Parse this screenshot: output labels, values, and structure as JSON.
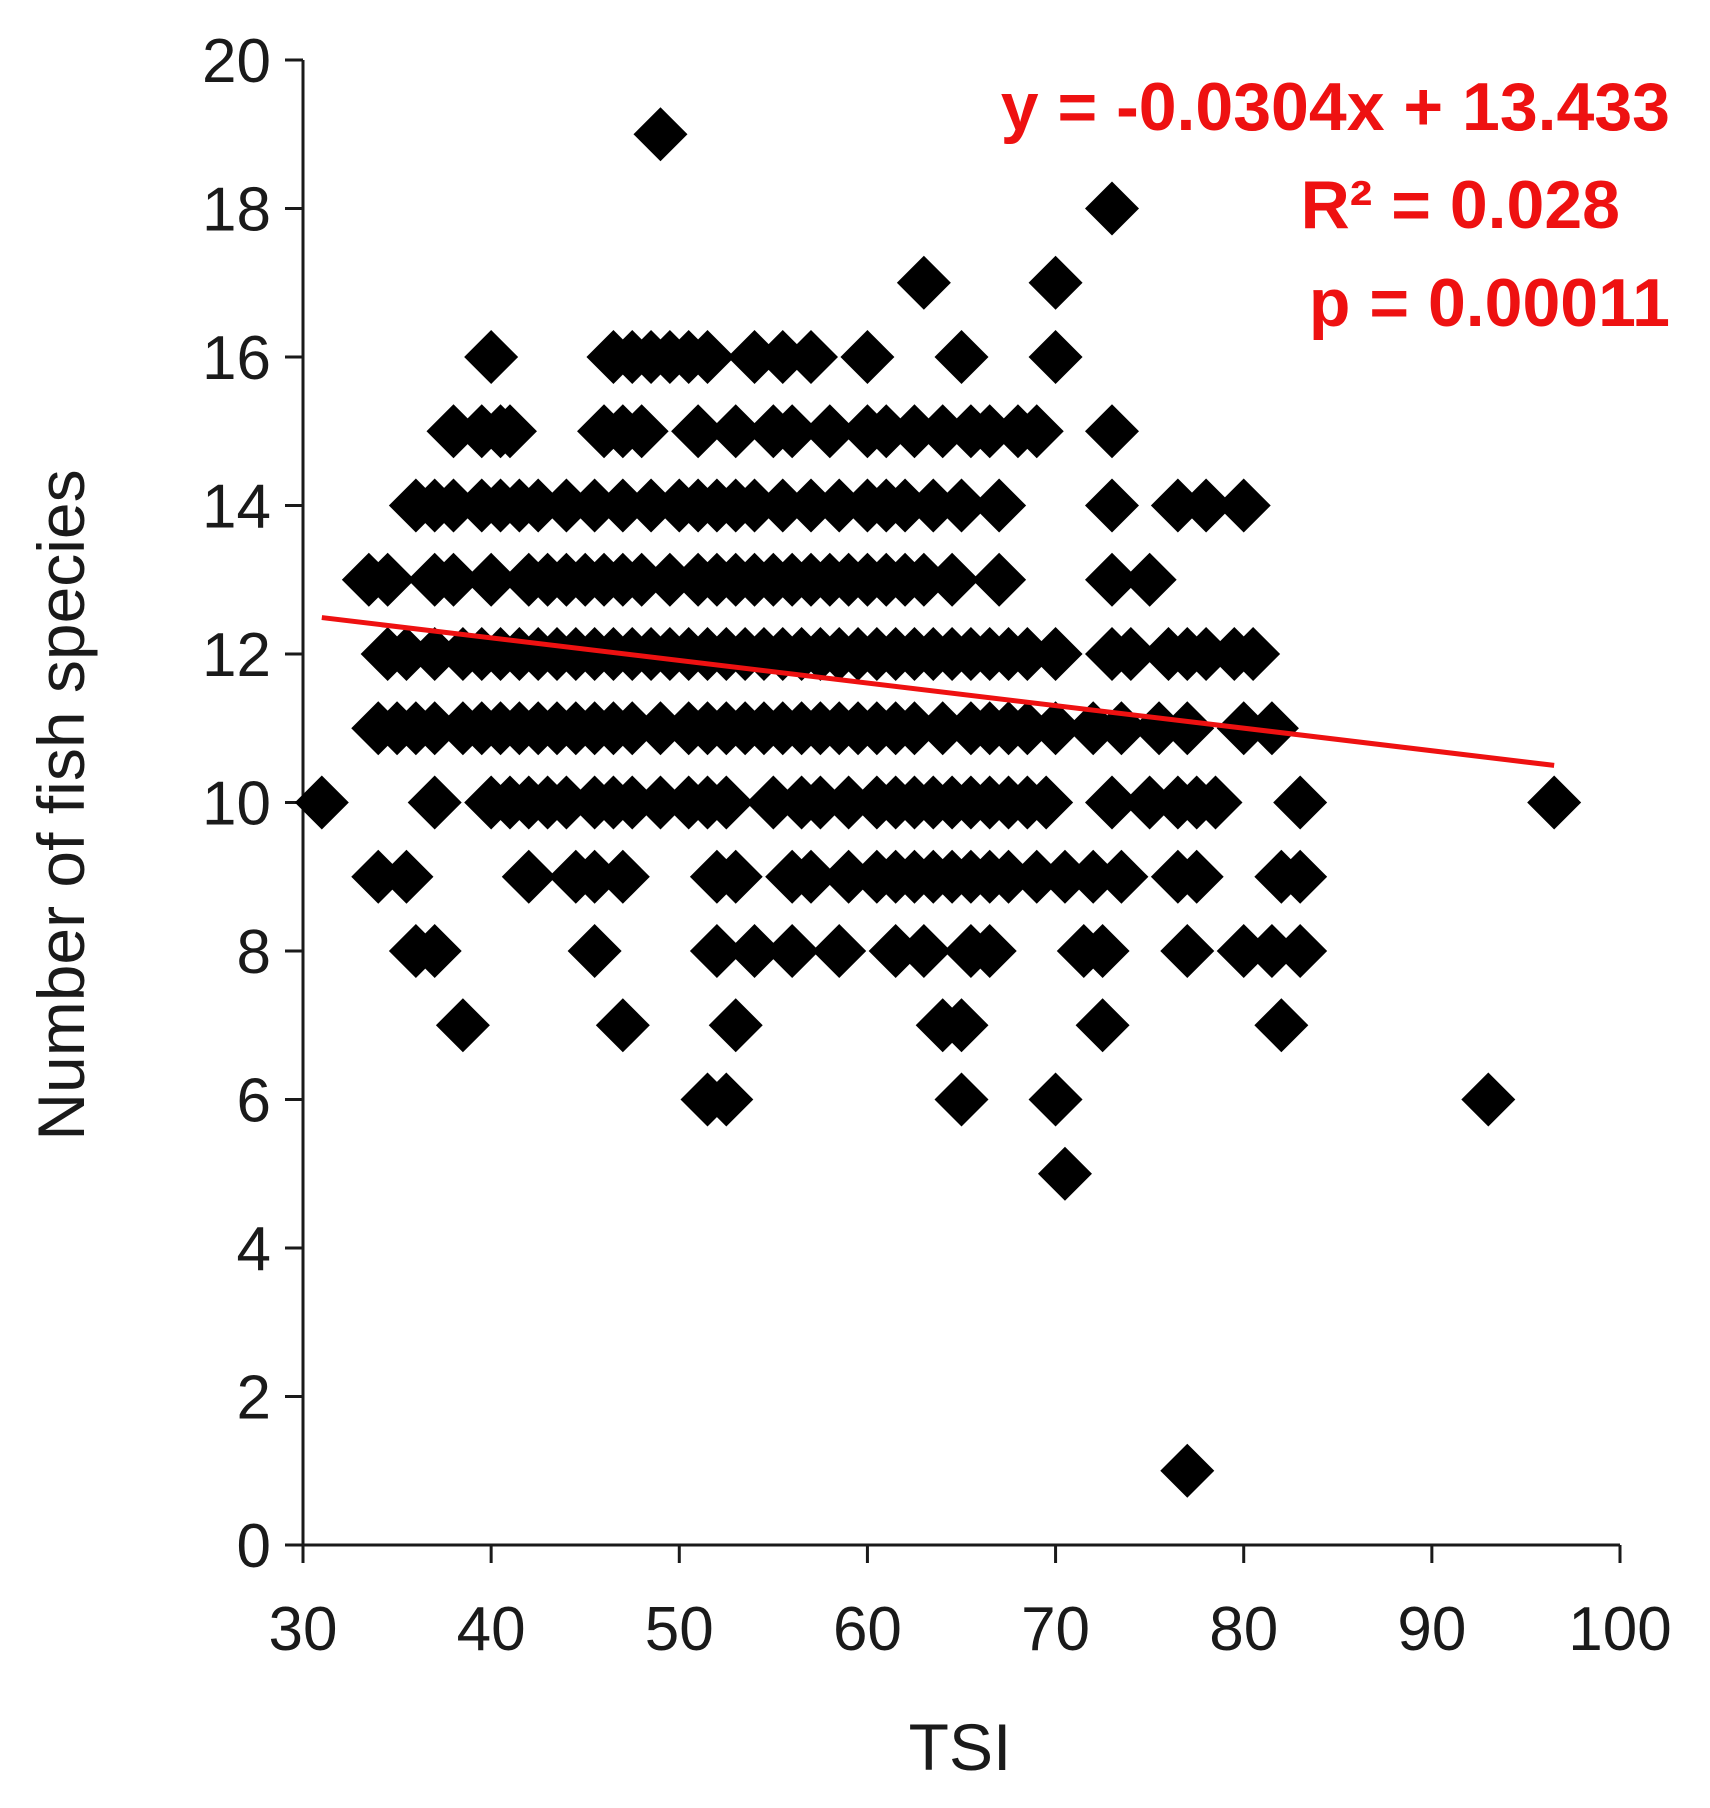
{
  "chart_data": {
    "type": "scatter",
    "xlabel": "TSI",
    "ylabel": "Number of fish species",
    "xlim": [
      30,
      100
    ],
    "ylim": [
      0,
      20
    ],
    "xticks": [
      "30",
      "40",
      "50",
      "60",
      "70",
      "80",
      "90",
      "100"
    ],
    "yticks": [
      "0",
      "2",
      "4",
      "6",
      "8",
      "10",
      "12",
      "14",
      "16",
      "18",
      "20"
    ],
    "marker": "diamond",
    "marker_color": "#000000",
    "trendline": {
      "slope": -0.0304,
      "intercept": 13.433,
      "x_range": [
        31,
        96.5
      ],
      "color": "#ee1111"
    },
    "annotations": [
      "y = -0.0304x + 13.433",
      "R² = 0.028",
      "p = 0.00011"
    ],
    "annotation_color": "#ee1111",
    "grid": false,
    "series": [
      {
        "points": [
          [
            49,
            19
          ],
          [
            73,
            18
          ],
          [
            63,
            17
          ],
          [
            70,
            17
          ],
          [
            40,
            16
          ],
          [
            46.5,
            16
          ],
          [
            47.5,
            16
          ],
          [
            48.5,
            16
          ],
          [
            49.5,
            16
          ],
          [
            50.5,
            16
          ],
          [
            51.5,
            16
          ],
          [
            54,
            16
          ],
          [
            55.5,
            16
          ],
          [
            57,
            16
          ],
          [
            60,
            16
          ],
          [
            65,
            16
          ],
          [
            70,
            16
          ],
          [
            38,
            15
          ],
          [
            39.5,
            15
          ],
          [
            40.5,
            15
          ],
          [
            41,
            15
          ],
          [
            46,
            15
          ],
          [
            47,
            15
          ],
          [
            48,
            15
          ],
          [
            51,
            15
          ],
          [
            53,
            15
          ],
          [
            55,
            15
          ],
          [
            56,
            15
          ],
          [
            58,
            15
          ],
          [
            60,
            15
          ],
          [
            61,
            15
          ],
          [
            62.5,
            15
          ],
          [
            64,
            15
          ],
          [
            65.5,
            15
          ],
          [
            66.5,
            15
          ],
          [
            68,
            15
          ],
          [
            69,
            15
          ],
          [
            73,
            15
          ],
          [
            36,
            14
          ],
          [
            37,
            14
          ],
          [
            38,
            14
          ],
          [
            39.5,
            14
          ],
          [
            40.5,
            14
          ],
          [
            41.5,
            14
          ],
          [
            42.5,
            14
          ],
          [
            44,
            14
          ],
          [
            45.5,
            14
          ],
          [
            47,
            14
          ],
          [
            48.5,
            14
          ],
          [
            50,
            14
          ],
          [
            51,
            14
          ],
          [
            52,
            14
          ],
          [
            53,
            14
          ],
          [
            54,
            14
          ],
          [
            55.5,
            14
          ],
          [
            57,
            14
          ],
          [
            58.5,
            14
          ],
          [
            60,
            14
          ],
          [
            61,
            14
          ],
          [
            62,
            14
          ],
          [
            63.5,
            14
          ],
          [
            65,
            14
          ],
          [
            67,
            14
          ],
          [
            73,
            14
          ],
          [
            76.5,
            14
          ],
          [
            78,
            14
          ],
          [
            80,
            14
          ],
          [
            33.5,
            13
          ],
          [
            34.5,
            13
          ],
          [
            37,
            13
          ],
          [
            38,
            13
          ],
          [
            40,
            13
          ],
          [
            42,
            13
          ],
          [
            43,
            13
          ],
          [
            44,
            13
          ],
          [
            45,
            13
          ],
          [
            46,
            13
          ],
          [
            47,
            13
          ],
          [
            48,
            13
          ],
          [
            49.5,
            13
          ],
          [
            51,
            13
          ],
          [
            52,
            13
          ],
          [
            53,
            13
          ],
          [
            54,
            13
          ],
          [
            55,
            13
          ],
          [
            56,
            13
          ],
          [
            57,
            13
          ],
          [
            58,
            13
          ],
          [
            59,
            13
          ],
          [
            60,
            13
          ],
          [
            61,
            13
          ],
          [
            62,
            13
          ],
          [
            63,
            13
          ],
          [
            64.5,
            13
          ],
          [
            67,
            13
          ],
          [
            73,
            13
          ],
          [
            75,
            13
          ],
          [
            34.5,
            12
          ],
          [
            35.5,
            12
          ],
          [
            37,
            12
          ],
          [
            38.5,
            12
          ],
          [
            39.5,
            12
          ],
          [
            40.5,
            12
          ],
          [
            41.5,
            12
          ],
          [
            42.5,
            12
          ],
          [
            43.5,
            12
          ],
          [
            44.5,
            12
          ],
          [
            45.5,
            12
          ],
          [
            46.5,
            12
          ],
          [
            47.5,
            12
          ],
          [
            48.5,
            12
          ],
          [
            49.5,
            12
          ],
          [
            50.5,
            12
          ],
          [
            51.5,
            12
          ],
          [
            52.5,
            12
          ],
          [
            53.5,
            12
          ],
          [
            54.5,
            12
          ],
          [
            55.5,
            12
          ],
          [
            56.5,
            12
          ],
          [
            57.5,
            12
          ],
          [
            58.5,
            12
          ],
          [
            59.5,
            12
          ],
          [
            60.5,
            12
          ],
          [
            61.5,
            12
          ],
          [
            62.5,
            12
          ],
          [
            63.5,
            12
          ],
          [
            64.5,
            12
          ],
          [
            65.5,
            12
          ],
          [
            66.5,
            12
          ],
          [
            67.5,
            12
          ],
          [
            68.5,
            12
          ],
          [
            70,
            12
          ],
          [
            73,
            12
          ],
          [
            74,
            12
          ],
          [
            76,
            12
          ],
          [
            77,
            12
          ],
          [
            78,
            12
          ],
          [
            79.5,
            12
          ],
          [
            80.5,
            12
          ],
          [
            34,
            11
          ],
          [
            35,
            11
          ],
          [
            36,
            11
          ],
          [
            37,
            11
          ],
          [
            38.5,
            11
          ],
          [
            39.5,
            11
          ],
          [
            40.5,
            11
          ],
          [
            41.5,
            11
          ],
          [
            42.5,
            11
          ],
          [
            43.5,
            11
          ],
          [
            44.5,
            11
          ],
          [
            45.5,
            11
          ],
          [
            46.5,
            11
          ],
          [
            47.5,
            11
          ],
          [
            49,
            11
          ],
          [
            50.5,
            11
          ],
          [
            51.5,
            11
          ],
          [
            52.5,
            11
          ],
          [
            53.5,
            11
          ],
          [
            54.5,
            11
          ],
          [
            55.5,
            11
          ],
          [
            56.5,
            11
          ],
          [
            57.5,
            11
          ],
          [
            58.5,
            11
          ],
          [
            59.5,
            11
          ],
          [
            60.5,
            11
          ],
          [
            61.5,
            11
          ],
          [
            62.5,
            11
          ],
          [
            64,
            11
          ],
          [
            65.5,
            11
          ],
          [
            66.5,
            11
          ],
          [
            67.5,
            11
          ],
          [
            68.5,
            11
          ],
          [
            70,
            11
          ],
          [
            72,
            11
          ],
          [
            73.5,
            11
          ],
          [
            75.5,
            11
          ],
          [
            77,
            11
          ],
          [
            80,
            11
          ],
          [
            81.5,
            11
          ],
          [
            31,
            10
          ],
          [
            37,
            10
          ],
          [
            40,
            10
          ],
          [
            41,
            10
          ],
          [
            42,
            10
          ],
          [
            43,
            10
          ],
          [
            44,
            10
          ],
          [
            45.5,
            10
          ],
          [
            46.5,
            10
          ],
          [
            47.5,
            10
          ],
          [
            49,
            10
          ],
          [
            50.5,
            10
          ],
          [
            51.5,
            10
          ],
          [
            52.5,
            10
          ],
          [
            55,
            10
          ],
          [
            56.5,
            10
          ],
          [
            57.5,
            10
          ],
          [
            59,
            10
          ],
          [
            60.5,
            10
          ],
          [
            61.5,
            10
          ],
          [
            62.5,
            10
          ],
          [
            63.5,
            10
          ],
          [
            64.5,
            10
          ],
          [
            65.5,
            10
          ],
          [
            66.5,
            10
          ],
          [
            67.5,
            10
          ],
          [
            68.5,
            10
          ],
          [
            69.5,
            10
          ],
          [
            73,
            10
          ],
          [
            75,
            10
          ],
          [
            76.5,
            10
          ],
          [
            77.5,
            10
          ],
          [
            78.5,
            10
          ],
          [
            83,
            10
          ],
          [
            96.5,
            10
          ],
          [
            34,
            9
          ],
          [
            35.5,
            9
          ],
          [
            42,
            9
          ],
          [
            44.5,
            9
          ],
          [
            45.5,
            9
          ],
          [
            47,
            9
          ],
          [
            52,
            9
          ],
          [
            53,
            9
          ],
          [
            56,
            9
          ],
          [
            57,
            9
          ],
          [
            59,
            9
          ],
          [
            60.5,
            9
          ],
          [
            61.5,
            9
          ],
          [
            62.5,
            9
          ],
          [
            63.5,
            9
          ],
          [
            64.5,
            9
          ],
          [
            65.5,
            9
          ],
          [
            66.5,
            9
          ],
          [
            67.5,
            9
          ],
          [
            69,
            9
          ],
          [
            70.5,
            9
          ],
          [
            72,
            9
          ],
          [
            73.5,
            9
          ],
          [
            76.5,
            9
          ],
          [
            77.5,
            9
          ],
          [
            82,
            9
          ],
          [
            83,
            9
          ],
          [
            36,
            8
          ],
          [
            37,
            8
          ],
          [
            45.5,
            8
          ],
          [
            52,
            8
          ],
          [
            54,
            8
          ],
          [
            56,
            8
          ],
          [
            58.5,
            8
          ],
          [
            61.5,
            8
          ],
          [
            63,
            8
          ],
          [
            65.5,
            8
          ],
          [
            66.5,
            8
          ],
          [
            71.5,
            8
          ],
          [
            72.5,
            8
          ],
          [
            77,
            8
          ],
          [
            80,
            8
          ],
          [
            81.5,
            8
          ],
          [
            83,
            8
          ],
          [
            38.5,
            7
          ],
          [
            47,
            7
          ],
          [
            53,
            7
          ],
          [
            64,
            7
          ],
          [
            65,
            7
          ],
          [
            72.5,
            7
          ],
          [
            82,
            7
          ],
          [
            51.5,
            6
          ],
          [
            52.5,
            6
          ],
          [
            65,
            6
          ],
          [
            70,
            6
          ],
          [
            93,
            6
          ],
          [
            70.5,
            5
          ],
          [
            77,
            1
          ]
        ]
      }
    ]
  }
}
